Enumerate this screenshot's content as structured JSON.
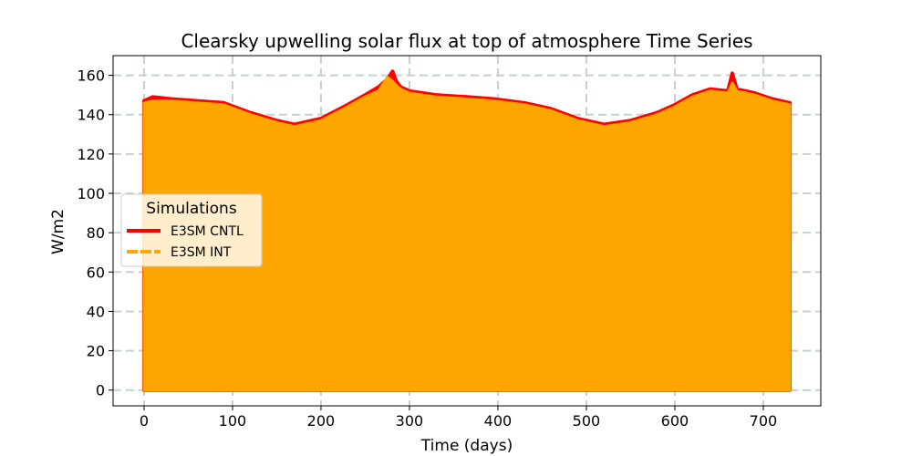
{
  "chart_data": {
    "type": "area",
    "title": "Clearsky upwelling solar flux at top of atmosphere Time Series",
    "xlabel": "Time (days)",
    "ylabel": "W/m2",
    "xlim": [
      -35,
      765
    ],
    "ylim": [
      -8,
      170
    ],
    "xticks": [
      0,
      100,
      200,
      300,
      400,
      500,
      600,
      700
    ],
    "yticks": [
      0,
      20,
      40,
      60,
      80,
      100,
      120,
      140,
      160
    ],
    "grid": true,
    "grid_style": "dashed",
    "legend": {
      "title": "Simulations",
      "placement": "center-left"
    },
    "series": [
      {
        "name": "E3SM CNTL",
        "color": "#ff0000",
        "line_style": "solid",
        "lower": 0,
        "x": [
          0,
          10,
          30,
          60,
          90,
          120,
          150,
          170,
          200,
          230,
          250,
          265,
          275,
          281,
          285,
          290,
          300,
          330,
          365,
          395,
          430,
          460,
          490,
          520,
          550,
          580,
          600,
          620,
          640,
          660,
          665,
          670,
          690,
          710,
          730
        ],
        "values": [
          147,
          149,
          148,
          147,
          146,
          141,
          137,
          135,
          138,
          145,
          150,
          154,
          158,
          162,
          157,
          154,
          152,
          150,
          149,
          148,
          146,
          143,
          138,
          135,
          137,
          141,
          145,
          150,
          153,
          152,
          161,
          153,
          151,
          148,
          146
        ]
      },
      {
        "name": "E3SM INT",
        "color": "#ffa500",
        "line_style": "dashed",
        "lower": 0,
        "x": [
          0,
          10,
          30,
          60,
          90,
          120,
          150,
          170,
          200,
          230,
          250,
          265,
          275,
          281,
          285,
          290,
          300,
          330,
          365,
          395,
          430,
          460,
          490,
          520,
          550,
          580,
          600,
          620,
          640,
          660,
          665,
          670,
          690,
          710,
          730
        ],
        "values": [
          146,
          147,
          147,
          146,
          145,
          140,
          136,
          134,
          137,
          144,
          149,
          152,
          159,
          157,
          155,
          153,
          151,
          149,
          148,
          147,
          145,
          142,
          137,
          134,
          136,
          140,
          144,
          149,
          152,
          151,
          156,
          152,
          150,
          147,
          145
        ]
      }
    ]
  }
}
